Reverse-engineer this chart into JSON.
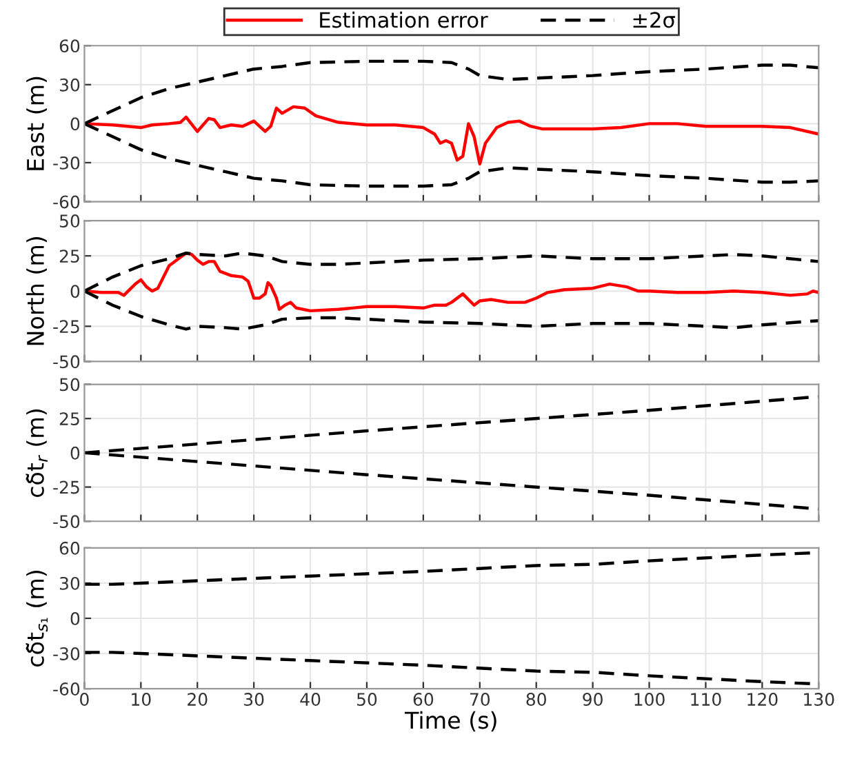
{
  "chart_data": [
    {
      "type": "line",
      "ylabel": "East (m)",
      "xlim": [
        0,
        130
      ],
      "xticks": [
        0,
        10,
        20,
        30,
        40,
        50,
        60,
        70,
        80,
        90,
        100,
        110,
        120,
        130
      ],
      "ylim": [
        -60,
        60
      ],
      "yticks": [
        -60,
        -30,
        0,
        30,
        60
      ],
      "grid": true,
      "legend": "top",
      "tick_labels": "y",
      "marker": "none",
      "series": [
        {
          "name": "Estimation error",
          "color": "#ff0000",
          "line_style": "solid",
          "x": [
            0,
            5,
            10,
            12,
            15,
            17,
            18,
            20,
            22,
            23,
            24,
            26,
            28,
            30,
            32,
            33,
            34,
            35,
            37,
            39,
            41,
            45,
            50,
            55,
            60,
            62,
            63,
            64,
            65,
            66,
            67,
            68,
            69,
            70,
            71,
            73,
            75,
            77,
            79,
            81,
            85,
            90,
            95,
            100,
            105,
            110,
            120,
            125,
            130
          ],
          "values": [
            0,
            -1,
            -3,
            -1,
            0,
            1,
            5,
            -6,
            4,
            3,
            -3,
            -1,
            -2,
            2,
            -6,
            -2,
            12,
            8,
            13,
            12,
            6,
            1,
            -1,
            -1,
            -3,
            -8,
            -15,
            -13,
            -15,
            -28,
            -25,
            0,
            -10,
            -31,
            -15,
            -3,
            1,
            2,
            -2,
            -4,
            -4,
            -4,
            -3,
            0,
            0,
            -2,
            -2,
            -3,
            -8
          ]
        },
        {
          "name": "±2σ",
          "color": "#000000",
          "line_style": "dashed",
          "x": [
            0,
            5,
            10,
            15,
            20,
            25,
            30,
            35,
            40,
            50,
            60,
            65,
            68,
            70,
            75,
            80,
            90,
            100,
            110,
            120,
            125,
            130
          ],
          "values": [
            0,
            10,
            20,
            27,
            32,
            37,
            42,
            44,
            47,
            48,
            48,
            47,
            42,
            37,
            34,
            35,
            37,
            40,
            42,
            45,
            45,
            43
          ]
        },
        {
          "color": "#000000",
          "line_style": "dashed",
          "x": [
            0,
            5,
            10,
            15,
            20,
            25,
            30,
            35,
            40,
            50,
            60,
            65,
            68,
            70,
            75,
            80,
            90,
            100,
            110,
            120,
            125,
            130
          ],
          "values": [
            0,
            -10,
            -20,
            -27,
            -32,
            -37,
            -42,
            -44,
            -47,
            -48,
            -48,
            -47,
            -42,
            -37,
            -34,
            -35,
            -37,
            -40,
            -42,
            -45,
            -45,
            -44
          ]
        }
      ]
    },
    {
      "type": "line",
      "ylabel": "North (m)",
      "xlim": [
        0,
        130
      ],
      "xticks": [
        0,
        10,
        20,
        30,
        40,
        50,
        60,
        70,
        80,
        90,
        100,
        110,
        120,
        130
      ],
      "ylim": [
        -50,
        50
      ],
      "yticks": [
        -50,
        -25,
        0,
        25,
        50
      ],
      "grid": true,
      "tick_labels": "y",
      "marker": "none",
      "series": [
        {
          "color": "#ff0000",
          "line_style": "solid",
          "x": [
            0,
            3,
            5,
            6,
            7,
            9,
            10,
            11,
            12,
            13,
            15,
            17,
            18,
            19,
            20,
            21,
            22,
            23,
            24,
            26,
            28,
            29,
            30,
            31,
            32,
            32.5,
            33,
            34,
            34.5,
            35.5,
            36.5,
            37.5,
            40,
            45,
            50,
            55,
            60,
            62,
            64,
            65,
            67,
            69,
            70,
            72,
            75,
            78,
            80,
            82,
            85,
            90,
            93,
            96,
            98,
            100,
            105,
            110,
            115,
            120,
            125,
            128,
            129,
            130
          ],
          "values": [
            0,
            -1,
            -1,
            -1,
            -3,
            5,
            8,
            3,
            0,
            2,
            18,
            24,
            27,
            26,
            22,
            19,
            21,
            21,
            14,
            11,
            10,
            7,
            -5,
            -5,
            -2,
            6,
            4,
            -5,
            -13,
            -10,
            -8,
            -12,
            -14,
            -13,
            -11,
            -11,
            -12,
            -10,
            -10,
            -8,
            -2,
            -10,
            -7,
            -6,
            -8,
            -8,
            -5,
            -1,
            1,
            2,
            5,
            3,
            0,
            0,
            -1,
            -1,
            0,
            -1,
            -3,
            -2,
            0,
            -1
          ]
        },
        {
          "color": "#000000",
          "line_style": "dashed",
          "x": [
            0,
            5,
            10,
            15,
            18,
            20,
            25,
            28,
            32,
            35,
            40,
            45,
            50,
            60,
            70,
            80,
            90,
            100,
            110,
            115,
            120,
            130
          ],
          "values": [
            0,
            10,
            18,
            23,
            27,
            26,
            25,
            27,
            25,
            21,
            19,
            19,
            20,
            22,
            23,
            25,
            23,
            23,
            25,
            26,
            25,
            21
          ]
        },
        {
          "color": "#000000",
          "line_style": "dashed",
          "x": [
            0,
            5,
            10,
            15,
            18,
            20,
            25,
            28,
            32,
            35,
            40,
            45,
            50,
            60,
            70,
            80,
            90,
            100,
            110,
            115,
            120,
            130
          ],
          "values": [
            0,
            -10,
            -18,
            -24,
            -27,
            -25,
            -26,
            -27,
            -24,
            -20,
            -19,
            -19,
            -20,
            -22,
            -23,
            -25,
            -23,
            -23,
            -25,
            -26,
            -24,
            -21
          ]
        }
      ]
    },
    {
      "type": "line",
      "ylabel": "cδ̃t$_{r}$ (m)",
      "xlim": [
        0,
        130
      ],
      "xticks": [
        0,
        10,
        20,
        30,
        40,
        50,
        60,
        70,
        80,
        90,
        100,
        110,
        120,
        130
      ],
      "ylim": [
        -50,
        50
      ],
      "yticks": [
        -50,
        -25,
        0,
        25,
        50
      ],
      "grid": true,
      "tick_labels": "y",
      "marker": "none",
      "series": [
        {
          "color": "#000000",
          "line_style": "dashed",
          "x": [
            0,
            50,
            100,
            130
          ],
          "values": [
            0,
            16,
            31,
            41
          ]
        },
        {
          "color": "#000000",
          "line_style": "dashed",
          "x": [
            0,
            50,
            100,
            130
          ],
          "values": [
            0,
            -16,
            -31,
            -41
          ]
        }
      ]
    },
    {
      "type": "line",
      "ylabel": "cδ̃t$_{s₁}$ (m)",
      "xlabel": "Time (s)",
      "xlim": [
        0,
        130
      ],
      "xticks": [
        0,
        10,
        20,
        30,
        40,
        50,
        60,
        70,
        80,
        90,
        100,
        110,
        120,
        130
      ],
      "ylim": [
        -60,
        60
      ],
      "yticks": [
        -60,
        -30,
        0,
        30,
        60
      ],
      "grid": true,
      "marker": "none",
      "series": [
        {
          "color": "#000000",
          "line_style": "dashed",
          "x": [
            0,
            5,
            10,
            20,
            40,
            60,
            80,
            90,
            100,
            120,
            130
          ],
          "values": [
            29,
            29,
            30,
            32,
            36,
            40,
            45,
            46,
            49,
            54,
            56
          ]
        },
        {
          "color": "#000000",
          "line_style": "dashed",
          "x": [
            0,
            5,
            10,
            20,
            40,
            60,
            80,
            90,
            100,
            120,
            130
          ],
          "values": [
            -29,
            -29,
            -30,
            -32,
            -36,
            -40,
            -45,
            -46,
            -49,
            -54,
            -56
          ]
        }
      ]
    }
  ]
}
